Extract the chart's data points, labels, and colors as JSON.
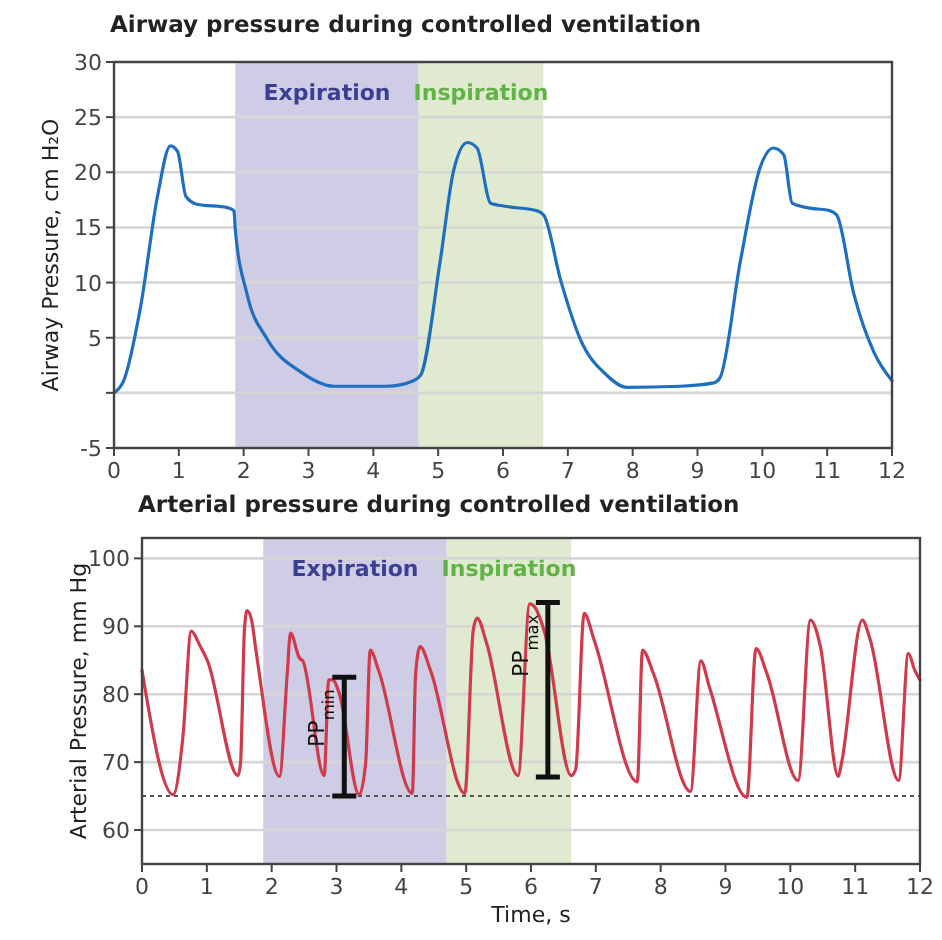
{
  "chart_data": [
    {
      "type": "line",
      "title": "Airway pressure during controlled ventilation",
      "ylabel": "Airway Pressure, cm H₂O",
      "xlim": [
        0,
        12
      ],
      "xticks": [
        0,
        1,
        2,
        3,
        4,
        5,
        6,
        7,
        8,
        9,
        10,
        11,
        12
      ],
      "ylim": [
        -5,
        30
      ],
      "yticks": [
        -5,
        {
          "value": 0,
          "label": null
        },
        5,
        10,
        15,
        20,
        25,
        30
      ],
      "grid": "y",
      "bands": [
        {
          "axis": "x",
          "from": 1.87,
          "to": 4.7,
          "label": "Expiration",
          "color": "#cfcde6"
        },
        {
          "axis": "x",
          "from": 4.7,
          "to": 6.62,
          "label": "Inspiration",
          "color": "#dfead0"
        }
      ],
      "series": [
        {
          "color": "#1f6fbf",
          "x": [
            0,
            0.15,
            0.41,
            0.67,
            0.87,
            0.98,
            1.11,
            1.28,
            1.75,
            1.85,
            1.87,
            2.05,
            2.36,
            2.88,
            3.39,
            4.21,
            4.62,
            4.73,
            5.03,
            5.24,
            5.45,
            5.6,
            5.81,
            6.06,
            6.53,
            6.63,
            6.89,
            7.19,
            7.6,
            7.91,
            8.74,
            9.25,
            9.35,
            9.66,
            9.97,
            10.17,
            10.33,
            10.46,
            10.69,
            11.05,
            11.15,
            11.41,
            11.72,
            12
          ],
          "values": [
            0,
            1.1,
            7.8,
            17.8,
            22.4,
            21.9,
            17.8,
            17.1,
            16.8,
            16.5,
            14.9,
            9,
            4.9,
            1.9,
            0.6,
            0.6,
            1.1,
            1.6,
            11.9,
            20.2,
            22.7,
            22.2,
            17.2,
            16.9,
            16.5,
            16.1,
            10.2,
            4.9,
            1.6,
            0.5,
            0.6,
            0.9,
            1.4,
            11.9,
            20.5,
            22.2,
            21.6,
            17.2,
            16.8,
            16.5,
            16.1,
            9,
            3.7,
            1.1
          ]
        }
      ]
    },
    {
      "type": "line",
      "title": "Arterial pressure during controlled ventilation",
      "xlabel": "Time, s",
      "ylabel": "Arterial Pressure, mm Hg",
      "xlim": [
        0,
        12
      ],
      "xticks": [
        0,
        1,
        2,
        3,
        4,
        5,
        6,
        7,
        8,
        9,
        10,
        11,
        12
      ],
      "ylim": [
        55,
        103
      ],
      "yticks": [
        60,
        70,
        80,
        90,
        100
      ],
      "grid": "y",
      "bands": [
        {
          "axis": "x",
          "from": 1.87,
          "to": 4.7,
          "label": "Expiration",
          "color": "#cfcde6"
        },
        {
          "axis": "x",
          "from": 4.7,
          "to": 6.62,
          "label": "Inspiration",
          "color": "#dfead0"
        }
      ],
      "ref_lines": [
        {
          "axis": "y",
          "value": 65,
          "line_style": "dotted",
          "color": "#555555"
        }
      ],
      "annotations": [
        {
          "text": "PP$_{min}$",
          "x": 3.12,
          "y": 82.5
        },
        {
          "text": "PP$_{max}$",
          "x": 6.26,
          "y": 93.5
        }
      ],
      "series": [
        {
          "color": "#d03a4a",
          "x": [
            0,
            0.48,
            0.63,
            0.76,
            0.89,
            1.01,
            1.48,
            1.52,
            1.58,
            1.62,
            1.69,
            1.76,
            2.12,
            2.24,
            2.29,
            2.43,
            2.48,
            2.81,
            2.88,
            2.94,
            3.04,
            3.35,
            3.45,
            3.52,
            3.65,
            4.17,
            4.22,
            4.29,
            4.45,
            4.98,
            5.11,
            5.17,
            5.31,
            5.8,
            5.98,
            6.06,
            6.21,
            6.62,
            6.69,
            6.82,
            6.97,
            7.64,
            7.72,
            7.89,
            8.46,
            8.62,
            8.75,
            9.33,
            9.47,
            9.64,
            10.12,
            10.31,
            10.46,
            10.74,
            10.79,
            11.11,
            11.23,
            11.67,
            11.82,
            11.92,
            12
          ],
          "values": [
            83.5,
            65.2,
            73.6,
            89.3,
            87.2,
            84.9,
            68,
            69.9,
            89.5,
            92.3,
            90.9,
            86.3,
            67.9,
            83,
            89,
            85.3,
            84.9,
            68,
            82.1,
            82.1,
            80.2,
            65.2,
            69.9,
            86.5,
            83.5,
            65.4,
            83,
            87,
            83.5,
            65.4,
            89.5,
            91.2,
            87.7,
            68,
            93.3,
            92.8,
            89.1,
            68,
            69,
            91.9,
            88.1,
            67.1,
            86.5,
            83,
            65.7,
            84.9,
            81.1,
            64.8,
            86.7,
            83,
            67.3,
            90.9,
            87.2,
            67.9,
            69.9,
            90.9,
            88.1,
            67.3,
            86,
            83.5,
            82.1
          ]
        },
        {
          "color": "#111111",
          "x": [
            3.12,
            3.12
          ],
          "values": [
            65,
            82.5
          ]
        },
        {
          "color": "#111111",
          "x": [
            6.26,
            6.26
          ],
          "values": [
            67.8,
            93.5
          ]
        }
      ]
    }
  ]
}
